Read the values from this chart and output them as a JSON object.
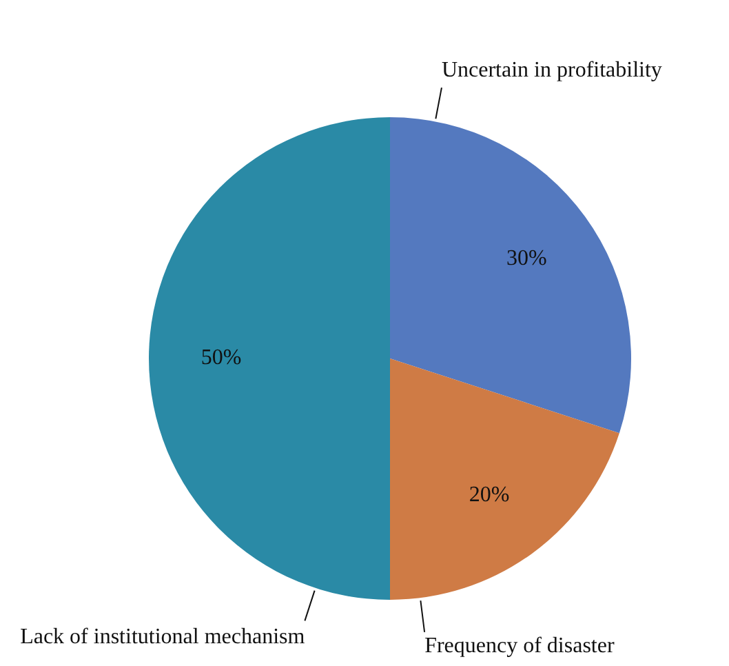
{
  "chart_data": {
    "type": "pie",
    "categories": [
      "Uncertain in profitability",
      "Frequency of disaster",
      "Lack of institutional mechanism"
    ],
    "values": [
      30,
      20,
      50
    ],
    "colors": [
      "#5479bf",
      "#cf7b45",
      "#2a8aa6"
    ],
    "value_labels": [
      "30%",
      "20%",
      "50%"
    ],
    "legend": false
  }
}
